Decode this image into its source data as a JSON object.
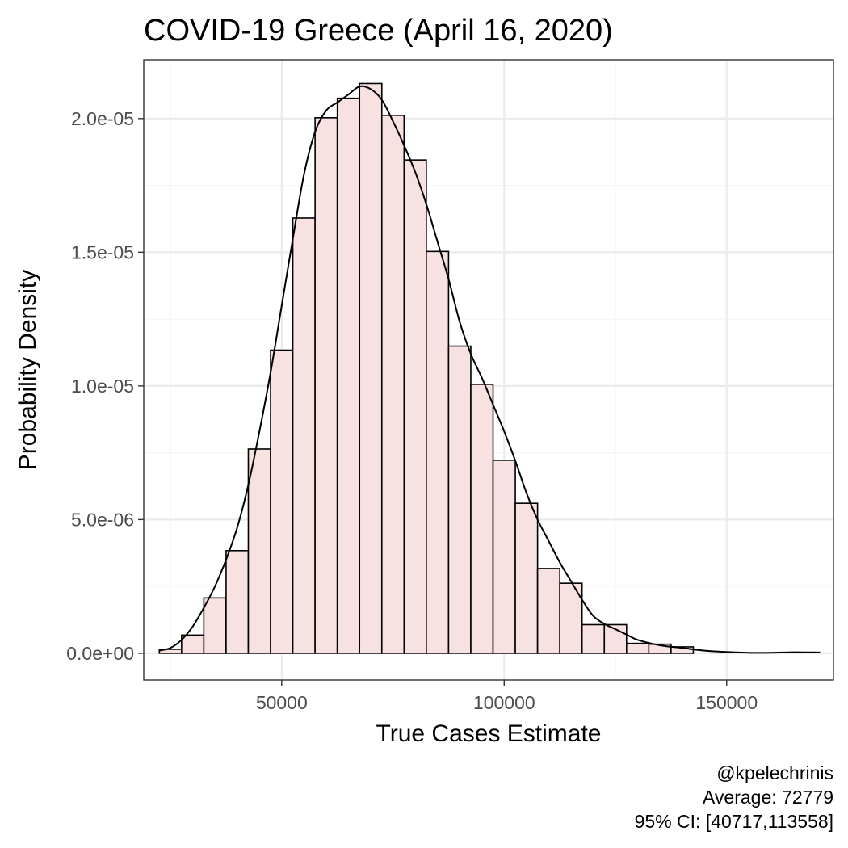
{
  "chart_data": {
    "type": "histogram",
    "title": "COVID-19 Greece (April 16, 2020)",
    "xlabel": "True Cases Estimate",
    "ylabel": "Probability Density",
    "xlim": [
      19000,
      174000
    ],
    "ylim": [
      -1e-06,
      2.22e-05
    ],
    "x_ticks": [
      50000,
      100000,
      150000
    ],
    "x_tick_labels": [
      "50000",
      "100000",
      "150000"
    ],
    "y_ticks": [
      0,
      5e-06,
      1e-05,
      1.5e-05,
      2e-05
    ],
    "y_tick_labels": [
      "0.0e+00",
      "5.0e-06",
      "1.0e-05",
      "1.5e-05",
      "2.0e-05"
    ],
    "grid": true,
    "bin_width": 5000,
    "bins": [
      {
        "x0": 22500,
        "x1": 27500,
        "density": 1.5e-07
      },
      {
        "x0": 27500,
        "x1": 32500,
        "density": 6.8e-07
      },
      {
        "x0": 32500,
        "x1": 37500,
        "density": 2.07e-06
      },
      {
        "x0": 37500,
        "x1": 42500,
        "density": 3.84e-06
      },
      {
        "x0": 42500,
        "x1": 47500,
        "density": 7.64e-06
      },
      {
        "x0": 47500,
        "x1": 52500,
        "density": 1.134e-05
      },
      {
        "x0": 52500,
        "x1": 57500,
        "density": 1.628e-05
      },
      {
        "x0": 57500,
        "x1": 62500,
        "density": 2.003e-05
      },
      {
        "x0": 62500,
        "x1": 67500,
        "density": 2.076e-05
      },
      {
        "x0": 67500,
        "x1": 72500,
        "density": 2.131e-05
      },
      {
        "x0": 72500,
        "x1": 77500,
        "density": 2.012e-05
      },
      {
        "x0": 77500,
        "x1": 82500,
        "density": 1.845e-05
      },
      {
        "x0": 82500,
        "x1": 87500,
        "density": 1.503e-05
      },
      {
        "x0": 87500,
        "x1": 92500,
        "density": 1.149e-05
      },
      {
        "x0": 92500,
        "x1": 97500,
        "density": 1.006e-05
      },
      {
        "x0": 97500,
        "x1": 102500,
        "density": 7.22e-06
      },
      {
        "x0": 102500,
        "x1": 107500,
        "density": 5.61e-06
      },
      {
        "x0": 107500,
        "x1": 112500,
        "density": 3.17e-06
      },
      {
        "x0": 112500,
        "x1": 117500,
        "density": 2.62e-06
      },
      {
        "x0": 117500,
        "x1": 122500,
        "density": 1.07e-06
      },
      {
        "x0": 122500,
        "x1": 127500,
        "density": 1.07e-06
      },
      {
        "x0": 127500,
        "x1": 132500,
        "density": 3.7e-07
      },
      {
        "x0": 132500,
        "x1": 137500,
        "density": 3.4e-07
      },
      {
        "x0": 137500,
        "x1": 142500,
        "density": 2.4e-07
      }
    ],
    "density_curve": {
      "x": [
        22500,
        25000,
        27500,
        30000,
        32500,
        35000,
        37500,
        40000,
        42500,
        45000,
        47500,
        50000,
        52500,
        55000,
        57500,
        60000,
        62500,
        65000,
        67500,
        70000,
        72500,
        75000,
        77500,
        80000,
        82500,
        85000,
        87500,
        90000,
        92500,
        95000,
        97500,
        100000,
        102500,
        105000,
        107500,
        110000,
        112500,
        115000,
        117500,
        120000,
        122500,
        125000,
        127500,
        130000,
        135000,
        140000,
        145000,
        150000,
        155000,
        160000,
        165000,
        171000
      ],
      "y": [
        1e-07,
        2e-07,
        5e-07,
        1e-06,
        1.7e-06,
        2.5e-06,
        3.5e-06,
        4.7e-06,
        6.3e-06,
        8.3e-06,
        1.05e-05,
        1.3e-05,
        1.55e-05,
        1.79e-05,
        1.95e-05,
        2.03e-05,
        2.06e-05,
        2.09e-05,
        2.12e-05,
        2.11e-05,
        2.07e-05,
        1.99e-05,
        1.9e-05,
        1.8e-05,
        1.68e-05,
        1.54e-05,
        1.4e-05,
        1.24e-05,
        1.12e-05,
        1.03e-05,
        9.3e-06,
        8.3e-06,
        7.2e-06,
        6e-06,
        5e-06,
        4.2e-06,
        3.4e-06,
        2.7e-06,
        2e-06,
        1.4e-06,
        1.1e-06,
        9e-07,
        7e-07,
        5e-07,
        3e-07,
        2e-07,
        1e-07,
        5e-08,
        2e-08,
        2e-08,
        4e-08,
        3e-08
      ]
    },
    "colors": {
      "bar_fill": "#f8e1e1",
      "bar_stroke": "#000000",
      "curve": "#000000",
      "grid_major": "#ebebeb",
      "grid_minor": "#f5f5f5",
      "panel_border": "#333333"
    },
    "caption_lines": [
      "@kpelechrinis",
      "Average: 72779",
      "95% CI: [40717,113558]"
    ]
  }
}
